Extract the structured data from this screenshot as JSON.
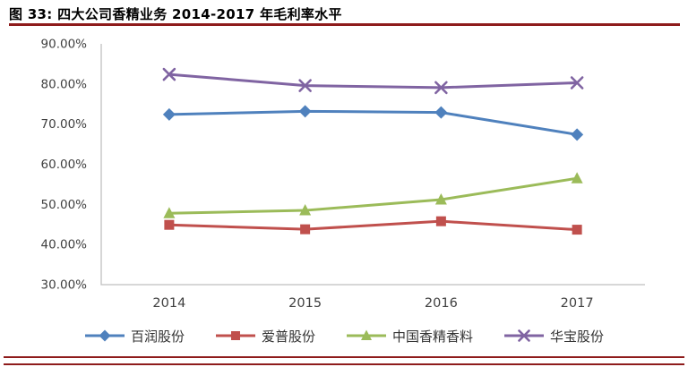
{
  "header": {
    "title": "图 33:  四大公司香精业务 2014-2017 年毛利率水平"
  },
  "colors": {
    "rule": "#8E1B1B",
    "axis": "#BFBFBF",
    "tick_text": "#404040",
    "legend_text": "#333333",
    "series_blue": "#4F81BD",
    "series_red": "#C0504D",
    "series_green": "#9BBB59",
    "series_purple": "#8064A2"
  },
  "chart_data": {
    "type": "line",
    "title": "图 33:  四大公司香精业务 2014-2017 年毛利率水平",
    "categories": [
      "2014",
      "2015",
      "2016",
      "2017"
    ],
    "series": [
      {
        "name": "百润股份",
        "marker": "diamond",
        "color": "#4F81BD",
        "values": [
          72.4,
          73.2,
          72.9,
          67.4
        ]
      },
      {
        "name": "爱普股份",
        "marker": "square",
        "color": "#C0504D",
        "values": [
          44.9,
          43.8,
          45.8,
          43.7
        ]
      },
      {
        "name": "中国香精香料",
        "marker": "triangle",
        "color": "#9BBB59",
        "values": [
          47.8,
          48.5,
          51.2,
          56.5
        ]
      },
      {
        "name": "华宝股份",
        "marker": "x",
        "color": "#8064A2",
        "values": [
          82.4,
          79.6,
          79.1,
          80.3
        ]
      }
    ],
    "xlabel": "",
    "ylabel": "",
    "ylim": [
      30,
      90
    ],
    "ytick_labels": [
      "90.00%",
      "80.00%",
      "70.00%",
      "60.00%",
      "50.00%",
      "40.00%",
      "30.00%"
    ],
    "grid": false,
    "legend_position": "bottom"
  }
}
